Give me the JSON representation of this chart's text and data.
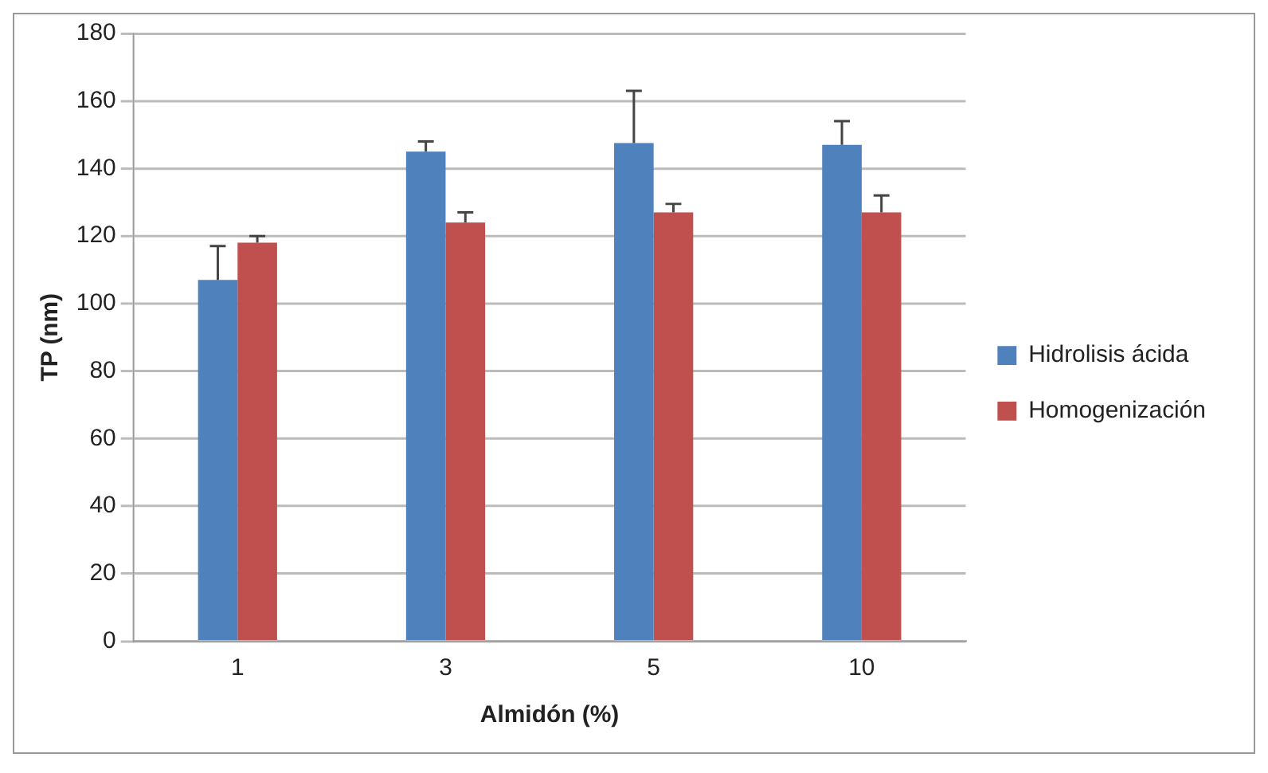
{
  "chart_data": {
    "type": "bar",
    "xlabel": "Almidón (%)",
    "ylabel": "TP (nm)",
    "categories": [
      "1",
      "3",
      "5",
      "10"
    ],
    "series": [
      {
        "name": "Hidrolisis ácida",
        "color": "#4f81bd",
        "values": [
          107,
          145,
          147.5,
          147
        ],
        "errors": [
          [
            107,
            117
          ],
          [
            145,
            148
          ],
          [
            147.5,
            163
          ],
          [
            147,
            154
          ]
        ]
      },
      {
        "name": "Homogenización",
        "color": "#c0504d",
        "values": [
          118,
          124,
          127,
          127
        ],
        "errors": [
          [
            118,
            120
          ],
          [
            124,
            127
          ],
          [
            127,
            129.5
          ],
          [
            127,
            132
          ]
        ]
      }
    ],
    "ylim": [
      0,
      180
    ],
    "yticks": [
      0,
      20,
      40,
      60,
      80,
      100,
      120,
      140,
      160,
      180
    ],
    "grid": "y",
    "legend": "right"
  }
}
